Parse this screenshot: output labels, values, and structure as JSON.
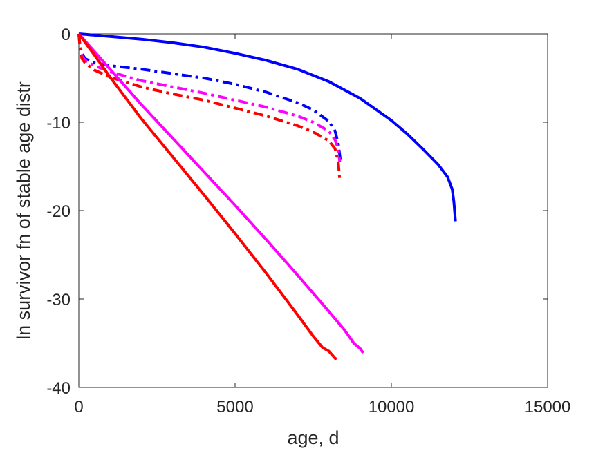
{
  "chart_data": {
    "type": "line",
    "title": "",
    "xlabel": "age, d",
    "ylabel": "ln survivor fn of stable age distr",
    "xlim": [
      0,
      15000
    ],
    "ylim": [
      -40,
      0
    ],
    "xticks": [
      0,
      5000,
      10000,
      15000
    ],
    "yticks": [
      0,
      -10,
      -20,
      -30,
      -40
    ],
    "xtick_labels": [
      "0",
      "5000",
      "10000",
      "15000"
    ],
    "ytick_labels": [
      "0",
      "-10",
      "-20",
      "-30",
      "-40"
    ],
    "grid": false,
    "legend": "none",
    "series": [
      {
        "color": "#0000ff",
        "style": "solid",
        "x": [
          0,
          1000,
          2000,
          3000,
          4000,
          5000,
          6000,
          7000,
          8000,
          9000,
          10000,
          10500,
          11000,
          11500,
          11800,
          11950,
          12000,
          12050
        ],
        "y": [
          0,
          -0.3,
          -0.6,
          -1.0,
          -1.5,
          -2.2,
          -3.0,
          -4.0,
          -5.4,
          -7.3,
          -9.8,
          -11.3,
          -13.0,
          -14.8,
          -16.2,
          -17.6,
          -19.0,
          -21.2
        ]
      },
      {
        "color": "#0000ff",
        "style": "dashdot",
        "x": [
          0,
          30,
          100,
          200,
          500,
          1000,
          2000,
          3000,
          4000,
          5000,
          6000,
          7000,
          7500,
          8000,
          8200,
          8300,
          8380
        ],
        "y": [
          0,
          -1.2,
          -2.2,
          -2.8,
          -3.3,
          -3.6,
          -4.0,
          -4.5,
          -5.0,
          -5.7,
          -6.6,
          -7.8,
          -8.6,
          -9.9,
          -11.0,
          -12.4,
          -14.6
        ]
      },
      {
        "color": "#ff00ff",
        "style": "dashdot",
        "x": [
          0,
          50,
          100,
          200,
          500,
          1000,
          2000,
          3000,
          4000,
          5000,
          6000,
          7000,
          7500,
          8000,
          8200,
          8300,
          8350
        ],
        "y": [
          0,
          -1.8,
          -2.5,
          -3.0,
          -3.6,
          -4.3,
          -5.3,
          -6.0,
          -6.7,
          -7.5,
          -8.3,
          -9.3,
          -10.0,
          -11.0,
          -12.0,
          -13.0,
          -14.5
        ]
      },
      {
        "color": "#ff0000",
        "style": "dashdot",
        "x": [
          0,
          50,
          100,
          200,
          500,
          1000,
          2000,
          3000,
          4000,
          5000,
          6000,
          7000,
          7500,
          8000,
          8200,
          8300,
          8350
        ],
        "y": [
          0,
          -2.0,
          -2.8,
          -3.3,
          -4.1,
          -4.9,
          -6.0,
          -6.8,
          -7.5,
          -8.4,
          -9.3,
          -10.4,
          -11.1,
          -12.1,
          -13.0,
          -14.5,
          -16.5
        ]
      },
      {
        "color": "#ff00ff",
        "style": "solid",
        "x": [
          0,
          500,
          1000,
          2000,
          3000,
          4000,
          5000,
          6000,
          7000,
          8000,
          8500,
          8800,
          9000,
          9100
        ],
        "y": [
          0,
          -2.0,
          -4.0,
          -8.0,
          -11.8,
          -15.6,
          -19.4,
          -23.3,
          -27.3,
          -31.4,
          -33.5,
          -35.0,
          -35.6,
          -36.1
        ]
      },
      {
        "color": "#ff0000",
        "style": "solid",
        "x": [
          0,
          500,
          1000,
          2000,
          3000,
          4000,
          5000,
          6000,
          7000,
          7500,
          7800,
          8000,
          8100,
          8200,
          8250
        ],
        "y": [
          0,
          -2.4,
          -4.9,
          -9.6,
          -13.9,
          -18.2,
          -22.6,
          -27.1,
          -31.8,
          -34.2,
          -35.5,
          -35.9,
          -36.3,
          -36.7,
          -36.8
        ]
      }
    ]
  }
}
